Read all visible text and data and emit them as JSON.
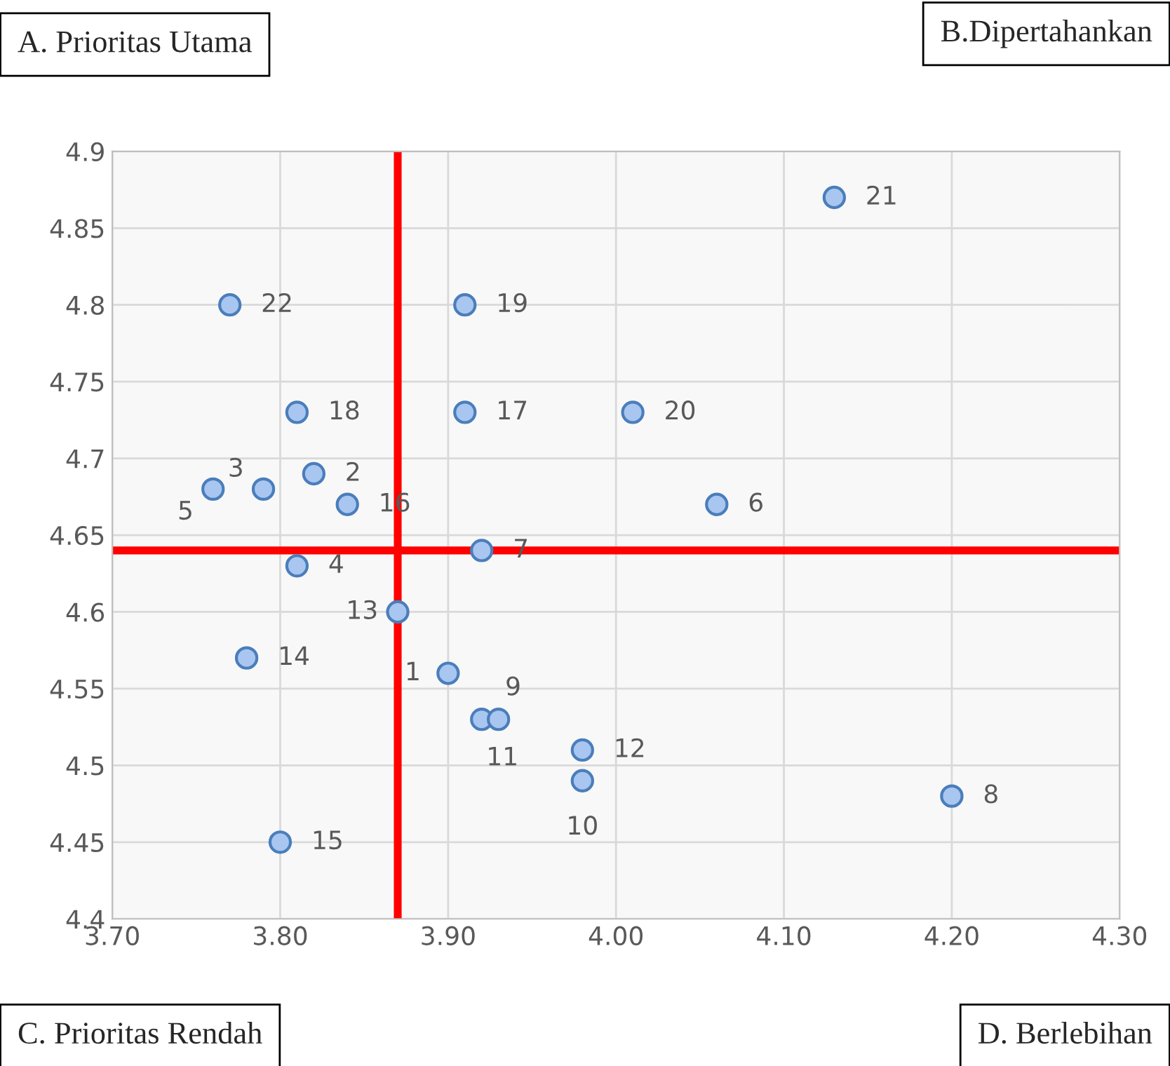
{
  "chart_data": {
    "type": "scatter",
    "x": [
      3.9,
      3.82,
      3.79,
      3.81,
      3.76,
      4.06,
      3.92,
      4.2,
      3.92,
      3.98,
      3.93,
      3.98,
      3.87,
      3.78,
      3.8,
      3.84,
      3.91,
      3.81,
      3.91,
      4.01,
      4.13,
      3.77
    ],
    "series": [
      {
        "color": "#a9c6f0",
        "values": [
          4.56,
          4.69,
          4.68,
          4.63,
          4.68,
          4.67,
          4.64,
          4.48,
          4.53,
          4.49,
          4.53,
          4.51,
          4.6,
          4.57,
          4.45,
          4.67,
          4.73,
          4.73,
          4.8,
          4.73,
          4.87,
          4.8
        ]
      }
    ],
    "marker": "circle",
    "grid": true,
    "xlim": [
      3.7,
      4.3
    ],
    "xticks": [
      {
        "value": 3.7,
        "label": "3.70"
      },
      {
        "value": 3.8,
        "label": "3.80"
      },
      {
        "value": 3.9,
        "label": "3.90"
      },
      {
        "value": 4.0,
        "label": "4.00"
      },
      {
        "value": 4.1,
        "label": "4.10"
      },
      {
        "value": 4.2,
        "label": "4.20"
      },
      {
        "value": 4.3,
        "label": "4.30"
      }
    ],
    "ylim": [
      4.4,
      4.9
    ],
    "yticks": [
      4.4,
      4.45,
      4.5,
      4.55,
      4.6,
      4.65,
      4.7,
      4.75,
      4.8,
      4.85,
      4.9
    ],
    "ref_lines": [
      {
        "axis": "x",
        "value": 3.87,
        "color": "#ff0000"
      },
      {
        "axis": "y",
        "value": 4.64,
        "color": "#ff0000"
      }
    ],
    "annotations": [
      "A. Prioritas Utama",
      "B.Dipertahankan",
      "C. Prioritas Rendah",
      "D. Berlebihan",
      {
        "text": "1",
        "x": 3.9,
        "y": 4.56
      },
      {
        "text": "2",
        "x": 3.82,
        "y": 4.69
      },
      {
        "text": "3",
        "x": 3.79,
        "y": 4.68
      },
      {
        "text": "4",
        "x": 3.81,
        "y": 4.63
      },
      {
        "text": "5",
        "x": 3.76,
        "y": 4.68
      },
      {
        "text": "6",
        "x": 4.06,
        "y": 4.67
      },
      {
        "text": "7",
        "x": 3.92,
        "y": 4.64
      },
      {
        "text": "8",
        "x": 4.2,
        "y": 4.48
      },
      {
        "text": "9",
        "x": 3.92,
        "y": 4.53
      },
      {
        "text": "10",
        "x": 3.98,
        "y": 4.49
      },
      {
        "text": "11",
        "x": 3.93,
        "y": 4.53
      },
      {
        "text": "12",
        "x": 3.98,
        "y": 4.51
      },
      {
        "text": "13",
        "x": 3.87,
        "y": 4.6
      },
      {
        "text": "14",
        "x": 3.78,
        "y": 4.57
      },
      {
        "text": "15",
        "x": 3.8,
        "y": 4.45
      },
      {
        "text": "16",
        "x": 3.84,
        "y": 4.67
      },
      {
        "text": "17",
        "x": 3.91,
        "y": 4.73
      },
      {
        "text": "18",
        "x": 3.81,
        "y": 4.73
      },
      {
        "text": "19",
        "x": 3.91,
        "y": 4.8
      },
      {
        "text": "20",
        "x": 4.01,
        "y": 4.73
      },
      {
        "text": "21",
        "x": 4.13,
        "y": 4.87
      },
      {
        "text": "22",
        "x": 3.77,
        "y": 4.8
      }
    ]
  }
}
